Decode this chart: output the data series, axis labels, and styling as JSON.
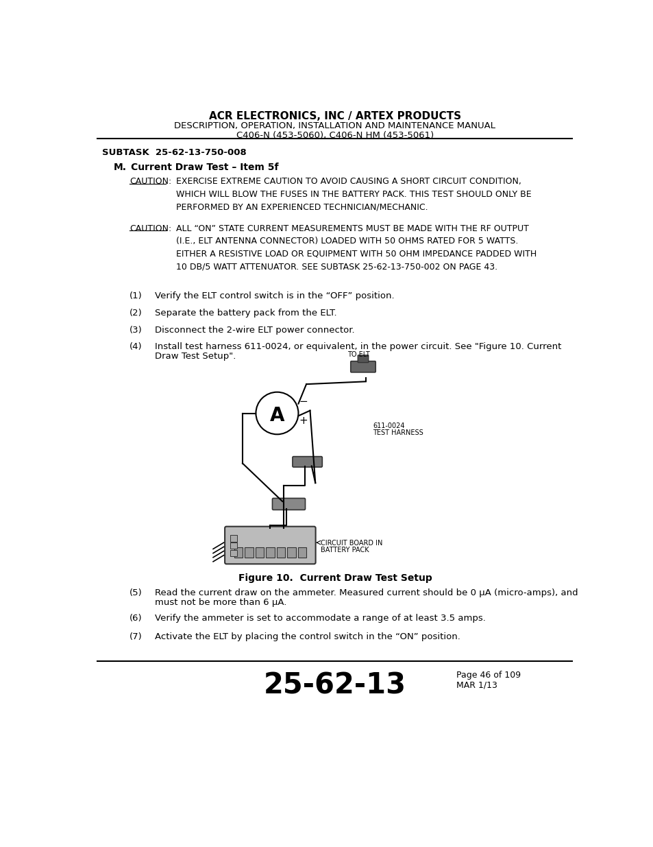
{
  "header_line1": "ACR ELECTRONICS, INC / ARTEX PRODUCTS",
  "header_line2": "DESCRIPTION, OPERATION, INSTALLATION AND MAINTENANCE MANUAL",
  "header_line3": "C406-N (453-5060), C406-N HM (453-5061)",
  "subtask": "SUBTASK  25-62-13-750-008",
  "section_label": "M.",
  "section_title": "Current Draw Test – Item 5f",
  "caution1_label": "CAUTION:",
  "caution1_text": "EXERCISE EXTREME CAUTION TO AVOID CAUSING A SHORT CIRCUIT CONDITION,\nWHICH WILL BLOW THE FUSES IN THE BATTERY PACK. THIS TEST SHOULD ONLY BE\nPERFORMED BY AN EXPERIENCED TECHNICIAN/MECHANIC.",
  "caution2_label": "CAUTION:",
  "caution2_text": "ALL “ON” STATE CURRENT MEASUREMENTS MUST BE MADE WITH THE RF OUTPUT\n(I.E., ELT ANTENNA CONNECTOR) LOADED WITH 50 OHMS RATED FOR 5 WATTS.\nEITHER A RESISTIVE LOAD OR EQUIPMENT WITH 50 OHM IMPEDANCE PADDED WITH\n10 DB/5 WATT ATTENUATOR. SEE SUBTASK 25-62-13-750-002 ON PAGE 43.",
  "step1_num": "(1)",
  "step1_text": "Verify the ELT control switch is in the “OFF” position.",
  "step2_num": "(2)",
  "step2_text": "Separate the battery pack from the ELT.",
  "step3_num": "(3)",
  "step3_text": "Disconnect the 2-wire ELT power connector.",
  "step4_num": "(4)",
  "step4_text1": "Install test harness 611-0024, or equivalent, in the power circuit. See \"Figure 10. Current",
  "step4_text2": "Draw Test Setup\".",
  "fig_caption": "Figure 10.  Current Draw Test Setup",
  "step5_num": "(5)",
  "step5_text1": "Read the current draw on the ammeter. Measured current should be 0 μA (micro-amps), and",
  "step5_text2": "must not be more than 6 μA.",
  "step6_num": "(6)",
  "step6_text": "Verify the ammeter is set to accommodate a range of at least 3.5 amps.",
  "step7_num": "(7)",
  "step7_text": "Activate the ELT by placing the control switch in the “ON” position.",
  "label_to_elt": "TO ELT",
  "label_harness1": "611-0024",
  "label_harness2": "TEST HARNESS",
  "label_board1": "CIRCUIT BOARD IN",
  "label_board2": "BATTERY PACK",
  "footer_number": "25-62-13",
  "footer_page": "Page 46 of 109",
  "footer_date": "MAR 1/13",
  "bg_color": "#ffffff",
  "text_color": "#000000"
}
